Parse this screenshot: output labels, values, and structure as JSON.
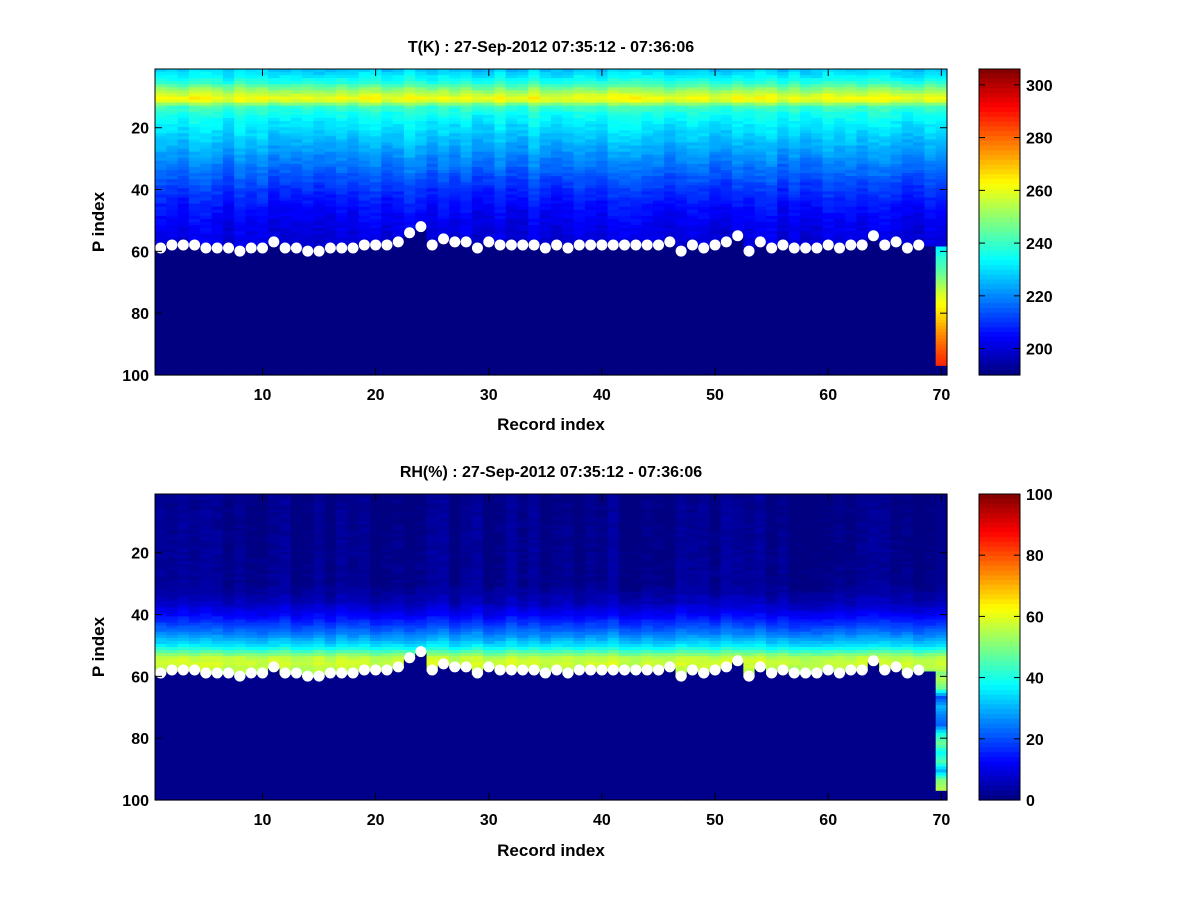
{
  "chart_data": [
    {
      "type": "heatmap",
      "title": "T(K) : 27-Sep-2012 07:35:12 - 07:36:06",
      "xlabel": "Record index",
      "ylabel": "P index",
      "xlim": [
        0.5,
        70.5
      ],
      "ylim": [
        1,
        100
      ],
      "y_reversed": true,
      "xticks": [
        10,
        20,
        30,
        40,
        50,
        60,
        70
      ],
      "yticks": [
        20,
        40,
        60,
        80,
        100
      ],
      "colormap": "jet",
      "clim": [
        190,
        306
      ],
      "colorbar_ticks": [
        200,
        220,
        240,
        260,
        280,
        300
      ],
      "n_records": 70,
      "n_levels": 100,
      "profile_knots": {
        "p": [
          1,
          3,
          5,
          7,
          9,
          10,
          11,
          12,
          13,
          15,
          18,
          22,
          26,
          30,
          35,
          40,
          45,
          50,
          55,
          58
        ],
        "value": [
          228,
          232,
          238,
          248,
          257,
          261,
          258,
          248,
          240,
          236,
          232,
          228,
          224,
          220,
          215,
          210,
          206,
          203,
          201,
          200
        ]
      },
      "below_surface_value": 190,
      "last_record_profile": {
        "p": [
          59,
          62,
          66,
          70,
          74,
          78,
          82,
          86,
          90,
          94,
          97
        ],
        "value": [
          232,
          238,
          243,
          250,
          258,
          263,
          268,
          274,
          279,
          284,
          287
        ]
      },
      "last_record_bottom_p": 97
    },
    {
      "type": "heatmap",
      "title": "RH(%) : 27-Sep-2012 07:35:12 - 07:36:06",
      "xlabel": "Record index",
      "ylabel": "P index",
      "xlim": [
        0.5,
        70.5
      ],
      "ylim": [
        1,
        100
      ],
      "y_reversed": true,
      "xticks": [
        10,
        20,
        30,
        40,
        50,
        60,
        70
      ],
      "yticks": [
        20,
        40,
        60,
        80,
        100
      ],
      "colormap": "jet",
      "clim": [
        0,
        100
      ],
      "colorbar_ticks": [
        0,
        20,
        40,
        60,
        80,
        100
      ],
      "n_records": 70,
      "n_levels": 100,
      "profile_knots": {
        "p": [
          1,
          30,
          36,
          40,
          44,
          47,
          50,
          52,
          54,
          56,
          58
        ],
        "value": [
          1,
          2,
          6,
          12,
          20,
          27,
          35,
          45,
          56,
          58,
          55
        ]
      },
      "below_surface_value": 1,
      "last_record_profile": {
        "p": [
          59,
          61,
          64,
          67,
          70,
          73,
          76,
          79,
          82,
          85,
          88,
          91,
          94,
          97
        ],
        "value": [
          50,
          55,
          48,
          20,
          30,
          25,
          22,
          40,
          48,
          38,
          45,
          30,
          50,
          55
        ]
      },
      "last_record_bottom_p": 97
    }
  ],
  "surface_points": {
    "record": [
      1,
      2,
      3,
      4,
      5,
      6,
      7,
      8,
      9,
      10,
      11,
      12,
      13,
      14,
      15,
      16,
      17,
      18,
      19,
      20,
      21,
      22,
      23,
      24,
      25,
      26,
      27,
      28,
      29,
      30,
      31,
      32,
      33,
      34,
      35,
      36,
      37,
      38,
      39,
      40,
      41,
      42,
      43,
      44,
      45,
      46,
      47,
      48,
      49,
      50,
      51,
      52,
      53,
      54,
      55,
      56,
      57,
      58,
      59,
      60,
      61,
      62,
      63,
      64,
      65,
      66,
      67,
      68
    ],
    "p_index": [
      59,
      58,
      58,
      58,
      59,
      59,
      59,
      60,
      59,
      59,
      57,
      59,
      59,
      60,
      60,
      59,
      59,
      59,
      58,
      58,
      58,
      57,
      54,
      52,
      58,
      56,
      57,
      57,
      59,
      57,
      58,
      58,
      58,
      58,
      59,
      58,
      59,
      58,
      58,
      58,
      58,
      58,
      58,
      58,
      58,
      57,
      60,
      58,
      59,
      58,
      57,
      55,
      60,
      57,
      59,
      58,
      59,
      59,
      59,
      58,
      59,
      58,
      58,
      55,
      58,
      57,
      59,
      58
    ]
  }
}
